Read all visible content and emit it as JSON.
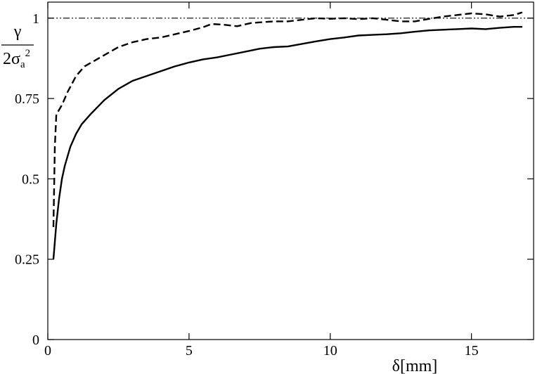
{
  "chart_data": {
    "type": "line",
    "xlabel": "δ[mm]",
    "ylabel": {
      "numerator": "γ",
      "denominator_prefix": "2σ",
      "denominator_sub": "a",
      "denominator_sup": "2"
    },
    "xlim": [
      0,
      17.2
    ],
    "ylim": [
      0,
      1.05
    ],
    "x_ticks": [
      0,
      5,
      10,
      15
    ],
    "x_tick_labels": [
      "0",
      "5",
      "10",
      "15"
    ],
    "y_ticks": [
      0,
      0.25,
      0.5,
      0.75,
      1
    ],
    "y_tick_labels": [
      "0",
      "0.25",
      "0.5",
      "0.75",
      "1"
    ],
    "grid": false,
    "reference_line": {
      "y": 1,
      "style": "dash-dot"
    },
    "series": [
      {
        "style": "solid",
        "points": [
          [
            0.2,
            0.25
          ],
          [
            0.3,
            0.36
          ],
          [
            0.4,
            0.44
          ],
          [
            0.5,
            0.5
          ],
          [
            0.6,
            0.54
          ],
          [
            0.7,
            0.57
          ],
          [
            0.8,
            0.6
          ],
          [
            1.0,
            0.64
          ],
          [
            1.2,
            0.67
          ],
          [
            1.5,
            0.7
          ],
          [
            2.0,
            0.745
          ],
          [
            2.5,
            0.78
          ],
          [
            3.0,
            0.805
          ],
          [
            3.5,
            0.82
          ],
          [
            4.0,
            0.835
          ],
          [
            4.5,
            0.85
          ],
          [
            5.0,
            0.862
          ],
          [
            5.5,
            0.872
          ],
          [
            6.0,
            0.878
          ],
          [
            6.5,
            0.887
          ],
          [
            7.0,
            0.896
          ],
          [
            7.5,
            0.905
          ],
          [
            8.0,
            0.91
          ],
          [
            8.5,
            0.912
          ],
          [
            9.0,
            0.92
          ],
          [
            9.5,
            0.928
          ],
          [
            10.0,
            0.935
          ],
          [
            10.5,
            0.94
          ],
          [
            11.0,
            0.946
          ],
          [
            11.5,
            0.948
          ],
          [
            12.0,
            0.95
          ],
          [
            12.5,
            0.953
          ],
          [
            13.0,
            0.958
          ],
          [
            13.5,
            0.962
          ],
          [
            14.0,
            0.964
          ],
          [
            14.5,
            0.966
          ],
          [
            15.0,
            0.968
          ],
          [
            15.5,
            0.966
          ],
          [
            16.0,
            0.97
          ],
          [
            16.5,
            0.973
          ],
          [
            16.8,
            0.973
          ]
        ]
      },
      {
        "style": "dashed",
        "points": [
          [
            0.2,
            0.35
          ],
          [
            0.25,
            0.6
          ],
          [
            0.3,
            0.7
          ],
          [
            0.5,
            0.73
          ],
          [
            0.7,
            0.77
          ],
          [
            1.0,
            0.82
          ],
          [
            1.3,
            0.85
          ],
          [
            1.7,
            0.87
          ],
          [
            2.0,
            0.885
          ],
          [
            2.5,
            0.91
          ],
          [
            3.0,
            0.925
          ],
          [
            3.5,
            0.935
          ],
          [
            4.0,
            0.94
          ],
          [
            4.5,
            0.95
          ],
          [
            5.0,
            0.96
          ],
          [
            5.5,
            0.972
          ],
          [
            5.8,
            0.982
          ],
          [
            6.2,
            0.98
          ],
          [
            6.7,
            0.975
          ],
          [
            7.2,
            0.985
          ],
          [
            8.0,
            0.99
          ],
          [
            8.5,
            0.99
          ],
          [
            9.0,
            0.995
          ],
          [
            9.5,
            1.0
          ],
          [
            10.0,
            0.998
          ],
          [
            10.5,
            1.0
          ],
          [
            11.0,
            0.997
          ],
          [
            11.5,
            1.0
          ],
          [
            12.0,
            0.995
          ],
          [
            12.5,
            0.99
          ],
          [
            13.0,
            0.99
          ],
          [
            13.5,
            0.998
          ],
          [
            14.0,
            1.005
          ],
          [
            14.5,
            1.01
          ],
          [
            15.0,
            1.015
          ],
          [
            15.5,
            1.012
          ],
          [
            16.0,
            1.005
          ],
          [
            16.5,
            1.01
          ],
          [
            16.8,
            1.018
          ]
        ]
      }
    ]
  }
}
